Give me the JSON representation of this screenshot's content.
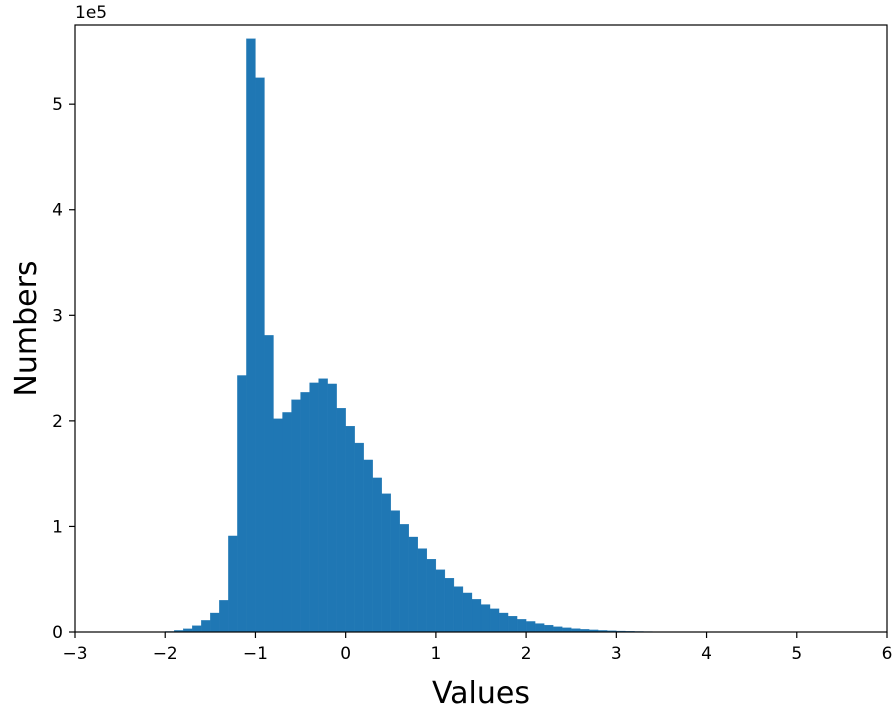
{
  "chart_data": {
    "type": "bar",
    "subtype": "histogram",
    "xlabel": "Values",
    "ylabel": "Numbers",
    "y_offset_label": "1e5",
    "xlim": [
      -3,
      6
    ],
    "ylim": [
      0,
      5.75
    ],
    "x_ticks": [
      -3,
      -2,
      -1,
      0,
      1,
      2,
      3,
      4,
      5,
      6
    ],
    "x_tick_labels": [
      "−3",
      "−2",
      "−1",
      "0",
      "1",
      "2",
      "3",
      "4",
      "5",
      "6"
    ],
    "y_ticks": [
      0,
      1,
      2,
      3,
      4,
      5
    ],
    "y_tick_labels": [
      "0",
      "1",
      "2",
      "3",
      "4",
      "5"
    ],
    "grid": false,
    "bar_color": "#1f77b4",
    "bin_width": 0.1,
    "bin_starts": [
      -2.0,
      -1.9,
      -1.8,
      -1.7,
      -1.6,
      -1.5,
      -1.4,
      -1.3,
      -1.2,
      -1.1,
      -1.0,
      -0.9,
      -0.8,
      -0.7,
      -0.6,
      -0.5,
      -0.4,
      -0.3,
      -0.2,
      -0.1,
      0.0,
      0.1,
      0.2,
      0.3,
      0.4,
      0.5,
      0.6,
      0.7,
      0.8,
      0.9,
      1.0,
      1.1,
      1.2,
      1.3,
      1.4,
      1.5,
      1.6,
      1.7,
      1.8,
      1.9,
      2.0,
      2.1,
      2.2,
      2.3,
      2.4,
      2.5,
      2.6,
      2.7,
      2.8,
      2.9,
      3.0,
      3.1,
      3.2,
      3.3,
      3.4,
      3.5,
      3.6,
      3.7,
      3.8,
      3.9,
      4.0,
      4.1,
      4.2,
      4.3,
      4.4,
      4.5
    ],
    "values": [
      0.005,
      0.015,
      0.03,
      0.06,
      0.11,
      0.18,
      0.3,
      0.91,
      2.43,
      5.62,
      5.25,
      2.81,
      2.02,
      2.08,
      2.2,
      2.27,
      2.36,
      2.4,
      2.35,
      2.12,
      1.95,
      1.79,
      1.63,
      1.46,
      1.31,
      1.15,
      1.02,
      0.9,
      0.79,
      0.69,
      0.59,
      0.51,
      0.43,
      0.37,
      0.31,
      0.26,
      0.22,
      0.18,
      0.15,
      0.12,
      0.1,
      0.08,
      0.065,
      0.05,
      0.04,
      0.032,
      0.025,
      0.02,
      0.015,
      0.012,
      0.009,
      0.007,
      0.005,
      0.004,
      0.003,
      0.002,
      0.0015,
      0.001,
      0.0008,
      0.0006,
      0.0005,
      0.0004,
      0.0003,
      0.0002,
      0.0001,
      0.0001
    ],
    "value_units": "1e5"
  }
}
